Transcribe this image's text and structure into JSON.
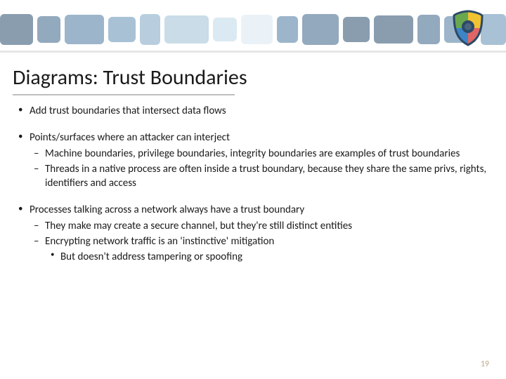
{
  "slide": {
    "title": "Diagrams: Trust Boundaries",
    "page_number": "19"
  },
  "bullets": [
    {
      "text": "Add trust boundaries that intersect data flows"
    },
    {
      "text": "Points/surfaces where an attacker can interject",
      "children": [
        {
          "text": "Machine boundaries, privilege boundaries, integrity boundaries are examples of trust boundaries"
        },
        {
          "text": "Threads in a native process are often inside a trust boundary, because they share the same privs, rights, identifiers and access"
        }
      ]
    },
    {
      "text": "Processes talking across a network always have a trust boundary",
      "children": [
        {
          "text": "They make may create a secure channel, but they're still distinct entities"
        },
        {
          "text": "Encrypting network traffic is an 'instinctive' mitigation",
          "children": [
            {
              "text": "But doesn't address tampering or spoofing"
            }
          ]
        }
      ]
    }
  ],
  "colors": {
    "background": "#ffffff",
    "text": "#1a1a1a",
    "divider": "#e6e6e6",
    "title_underline": "#bfbfbf",
    "pagenum": "#bfa88a",
    "header_blocks": [
      "#3a5b7a",
      "#4b6f91",
      "#5a83a6",
      "#6e97b9",
      "#88adc9",
      "#a5c4d9",
      "#c3dae9",
      "#dceaf3",
      "#5a83a6",
      "#4b6f91",
      "#3a5b7a"
    ]
  },
  "shield": {
    "ring": "#2c4a68",
    "segments": [
      "#6aa84f",
      "#f1c232",
      "#e06666",
      "#3d85c6"
    ]
  },
  "typography": {
    "title_fontsize": 30,
    "body_fontsize": 15,
    "pagenum_fontsize": 12,
    "font_family": "Segoe UI"
  }
}
